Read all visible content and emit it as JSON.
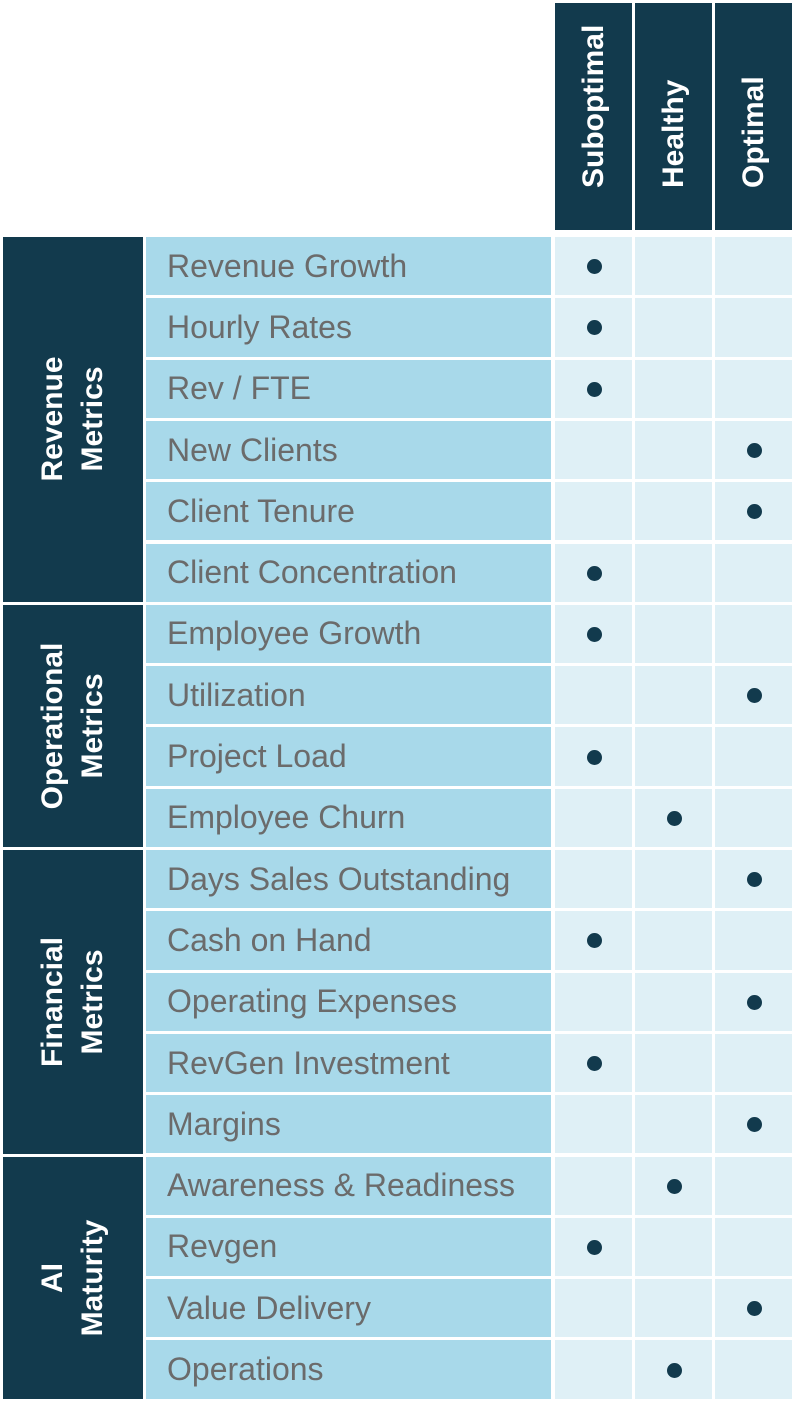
{
  "columns": [
    "Suboptimal",
    "Healthy",
    "Optimal"
  ],
  "colors": {
    "dark": "#123a4d",
    "metric_bg": "#a8d9ea",
    "rating_bg": "#dff0f6",
    "metric_text": "#6b6b6b"
  },
  "groups": [
    {
      "label": "Revenue\nMetrics",
      "rows": [
        {
          "metric": "Revenue Growth",
          "rating": "Suboptimal"
        },
        {
          "metric": "Hourly Rates",
          "rating": "Suboptimal"
        },
        {
          "metric": "Rev / FTE",
          "rating": "Suboptimal"
        },
        {
          "metric": "New Clients",
          "rating": "Optimal"
        },
        {
          "metric": "Client Tenure",
          "rating": "Optimal"
        },
        {
          "metric": "Client Concentration",
          "rating": "Suboptimal"
        }
      ]
    },
    {
      "label": "Operational\nMetrics",
      "rows": [
        {
          "metric": "Employee Growth",
          "rating": "Suboptimal"
        },
        {
          "metric": "Utilization",
          "rating": "Optimal"
        },
        {
          "metric": "Project Load",
          "rating": "Suboptimal"
        },
        {
          "metric": "Employee Churn",
          "rating": "Healthy"
        }
      ]
    },
    {
      "label": "Financial\nMetrics",
      "rows": [
        {
          "metric": "Days Sales Outstanding",
          "rating": "Optimal"
        },
        {
          "metric": "Cash on Hand",
          "rating": "Suboptimal"
        },
        {
          "metric": "Operating Expenses",
          "rating": "Optimal"
        },
        {
          "metric": "RevGen Investment",
          "rating": "Suboptimal"
        },
        {
          "metric": "Margins",
          "rating": "Optimal"
        }
      ]
    },
    {
      "label": "AI\nMaturity",
      "rows": [
        {
          "metric": "Awareness & Readiness",
          "rating": "Healthy"
        },
        {
          "metric": "Revgen",
          "rating": "Suboptimal"
        },
        {
          "metric": "Value Delivery",
          "rating": "Optimal"
        },
        {
          "metric": "Operations",
          "rating": "Healthy"
        }
      ]
    }
  ]
}
